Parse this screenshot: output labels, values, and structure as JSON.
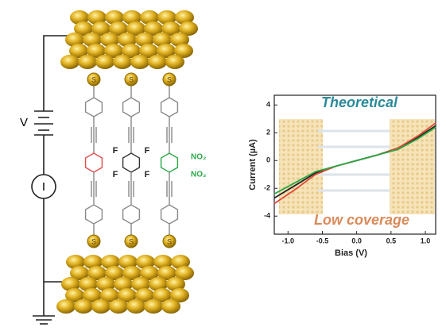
{
  "diagram": {
    "source_label": "V",
    "meter_label": "I",
    "sulfur_labels": [
      "S",
      "S",
      "S",
      "S",
      "S",
      "S"
    ],
    "fluorine_labels": [
      "F",
      "F",
      "F",
      "F"
    ],
    "nitro_labels": [
      "NO₂",
      "NO₂"
    ]
  },
  "chart_data": {
    "type": "line",
    "xlabel": "Bias (V)",
    "ylabel": "Current (µA)",
    "annotations": [
      "Theoretical",
      "Low coverage"
    ],
    "x": [
      -1.2,
      -0.9,
      -0.6,
      -0.3,
      0,
      0.3,
      0.6,
      0.9,
      1.15
    ],
    "series": [
      {
        "color": "#222222",
        "values": [
          -2.7,
          -1.8,
          -0.9,
          -0.4,
          0,
          0.4,
          0.9,
          1.7,
          2.5
        ]
      },
      {
        "color": "#e04a3a",
        "values": [
          -3.1,
          -2.1,
          -1.0,
          -0.4,
          0,
          0.4,
          0.9,
          1.8,
          2.7
        ]
      },
      {
        "color": "#2aa845",
        "values": [
          -2.4,
          -1.6,
          -0.8,
          -0.4,
          0,
          0.4,
          0.8,
          1.6,
          2.4
        ]
      }
    ],
    "xlim": [
      -1.2,
      1.15
    ],
    "ylim": [
      -5.3,
      4.7
    ],
    "xticks": [
      {
        "value": -1,
        "label": "-1.0"
      },
      -0.5,
      {
        "value": 0,
        "label": "0.0"
      },
      0.5,
      {
        "value": 1,
        "label": "1.0"
      }
    ],
    "yticks": [
      4,
      2,
      0,
      -2,
      -4
    ]
  }
}
